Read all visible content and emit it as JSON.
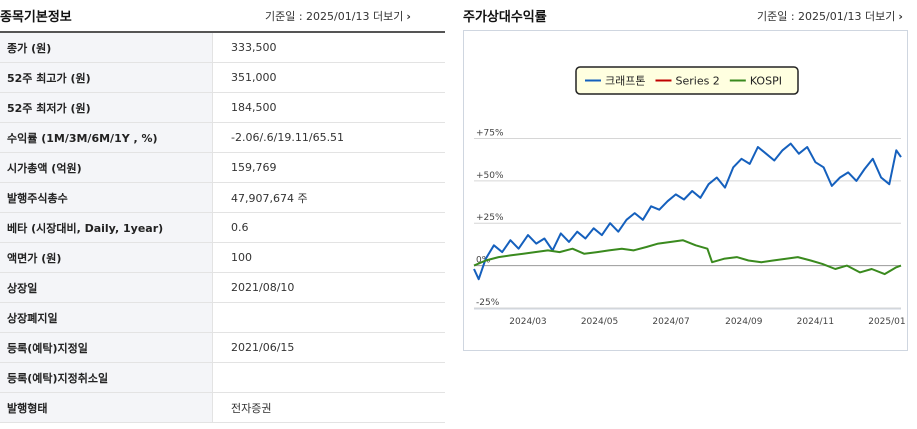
{
  "left_panel": {
    "title": "종목기본정보",
    "ref_date": "기준일 : 2025/01/13",
    "more": "더보기"
  },
  "info_rows": [
    {
      "label": "종가 (원)",
      "value": "333,500"
    },
    {
      "label": "52주 최고가 (원)",
      "value": "351,000"
    },
    {
      "label": "52주 최저가 (원)",
      "value": "184,500"
    },
    {
      "label": "수익률 (1M/3M/6M/1Y , %)",
      "value": "-2.06/.6/19.11/65.51"
    },
    {
      "label": "시가총액 (억원)",
      "value": "159,769"
    },
    {
      "label": "발행주식총수",
      "value": "47,907,674 주"
    },
    {
      "label": "베타 (시장대비, Daily, 1year)",
      "value": "0.6"
    },
    {
      "label": "액면가 (원)",
      "value": "100"
    },
    {
      "label": "상장일",
      "value": "2021/08/10"
    },
    {
      "label": "상장폐지일",
      "value": ""
    },
    {
      "label": "등록(예탁)지정일",
      "value": "2021/06/15"
    },
    {
      "label": "등록(예탁)지정취소일",
      "value": ""
    },
    {
      "label": "발행형태",
      "value": "전자증권"
    }
  ],
  "right_panel": {
    "title": "주가상대수익률",
    "ref_date": "기준일 : 2025/01/13",
    "more": "더보기"
  },
  "chart_data": {
    "type": "line",
    "ylim": [
      -25,
      80
    ],
    "yticks": [
      75,
      50,
      25,
      0,
      -25
    ],
    "ytick_labels": [
      "+75%",
      "+50%",
      "+25%",
      "0%",
      "-25%"
    ],
    "xlim": [
      "2024-01-15",
      "2025-01-13"
    ],
    "xticks": [
      "2024-03-01",
      "2024-05-01",
      "2024-07-01",
      "2024-09-01",
      "2024-11-01",
      "2025-01-01"
    ],
    "xtick_labels": [
      "2024/03",
      "2024/05",
      "2024/07",
      "2024/09",
      "2024/11",
      "2025/01"
    ],
    "legend_position": "top",
    "series": [
      {
        "name": "크래프톤",
        "color": "#1560bd",
        "x": [
          "2024-01-15",
          "2024-01-19",
          "2024-01-25",
          "2024-02-01",
          "2024-02-08",
          "2024-02-15",
          "2024-02-22",
          "2024-03-01",
          "2024-03-08",
          "2024-03-15",
          "2024-03-22",
          "2024-03-29",
          "2024-04-05",
          "2024-04-12",
          "2024-04-19",
          "2024-04-26",
          "2024-05-03",
          "2024-05-10",
          "2024-05-17",
          "2024-05-24",
          "2024-05-31",
          "2024-06-07",
          "2024-06-14",
          "2024-06-21",
          "2024-06-28",
          "2024-07-05",
          "2024-07-12",
          "2024-07-19",
          "2024-07-26",
          "2024-08-02",
          "2024-08-09",
          "2024-08-16",
          "2024-08-23",
          "2024-08-30",
          "2024-09-06",
          "2024-09-13",
          "2024-09-20",
          "2024-09-27",
          "2024-10-04",
          "2024-10-11",
          "2024-10-18",
          "2024-10-25",
          "2024-11-01",
          "2024-11-08",
          "2024-11-15",
          "2024-11-22",
          "2024-11-29",
          "2024-12-06",
          "2024-12-13",
          "2024-12-20",
          "2024-12-27",
          "2025-01-03",
          "2025-01-09",
          "2025-01-13"
        ],
        "values": [
          -2,
          -8,
          4,
          12,
          8,
          15,
          10,
          18,
          13,
          16,
          9,
          19,
          14,
          20,
          16,
          22,
          18,
          25,
          20,
          27,
          31,
          27,
          35,
          33,
          38,
          42,
          39,
          44,
          40,
          48,
          52,
          46,
          58,
          63,
          60,
          70,
          66,
          62,
          68,
          72,
          66,
          70,
          61,
          58,
          47,
          52,
          55,
          50,
          57,
          63,
          52,
          48,
          68,
          64
        ]
      },
      {
        "name": "Series 2",
        "color": "#c00000",
        "x": [],
        "values": []
      },
      {
        "name": "KOSPI",
        "color": "#3a8a1e",
        "x": [
          "2024-01-15",
          "2024-01-25",
          "2024-02-05",
          "2024-02-15",
          "2024-02-26",
          "2024-03-07",
          "2024-03-18",
          "2024-03-28",
          "2024-04-08",
          "2024-04-18",
          "2024-04-29",
          "2024-05-09",
          "2024-05-20",
          "2024-05-30",
          "2024-06-10",
          "2024-06-20",
          "2024-07-01",
          "2024-07-11",
          "2024-07-22",
          "2024-08-01",
          "2024-08-05",
          "2024-08-15",
          "2024-08-26",
          "2024-09-05",
          "2024-09-16",
          "2024-09-26",
          "2024-10-07",
          "2024-10-17",
          "2024-10-28",
          "2024-11-07",
          "2024-11-18",
          "2024-11-28",
          "2024-12-09",
          "2024-12-19",
          "2024-12-30",
          "2025-01-09",
          "2025-01-13"
        ],
        "values": [
          0,
          3,
          5,
          6,
          7,
          8,
          9,
          8,
          10,
          7,
          8,
          9,
          10,
          9,
          11,
          13,
          14,
          15,
          12,
          10,
          2,
          4,
          5,
          3,
          2,
          3,
          4,
          5,
          3,
          1,
          -2,
          0,
          -4,
          -2,
          -5,
          -1,
          0
        ]
      }
    ]
  }
}
